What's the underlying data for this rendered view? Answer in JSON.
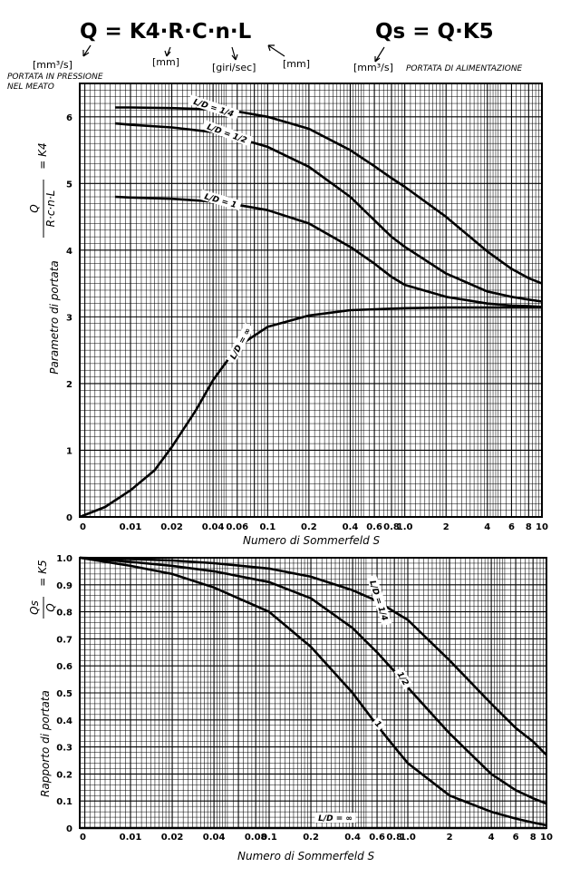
{
  "header": {
    "formula_q": "Q = K4·R·C·n·L",
    "formula_qs": "Qs = Q·K5",
    "unit_q": "[mm³/s]",
    "unit_r": "[mm]",
    "unit_n": "[giri/sec]",
    "unit_l": "[mm]",
    "unit_qs": "[mm³/s]",
    "note_q_line1": "PORTATA IN PRESSIONE",
    "note_q_line2": "NEL MEATO",
    "note_qs": "PORTATA DI ALIMENTAZIONE"
  },
  "chart_data": [
    {
      "type": "line",
      "xscale": "log-with-zero",
      "xlim": [
        0,
        10
      ],
      "ylim": [
        0,
        6.5
      ],
      "x_ticks": [
        "0",
        "0.01",
        "0.02",
        "0.04",
        "0.06",
        "0.1",
        "0.2",
        "0.4",
        "0.6",
        "0.8",
        "1.0",
        "2",
        "4",
        "6",
        "8",
        "10"
      ],
      "y_ticks": [
        "0",
        "1",
        "2",
        "3",
        "4",
        "5",
        "6"
      ],
      "xlabel": "Numero di Sommerfeld  S",
      "ylabel": "Parametro di portata",
      "ylabel_fraction_num": "Q",
      "ylabel_fraction_den": "R·c·n·L",
      "ylabel_fraction_rhs": "= K4",
      "grid": true,
      "series": [
        {
          "name": "L/D = 1/4",
          "points": [
            [
              0.007,
              6.14
            ],
            [
              0.01,
              6.14
            ],
            [
              0.02,
              6.13
            ],
            [
              0.04,
              6.11
            ],
            [
              0.06,
              6.08
            ],
            [
              0.1,
              6.0
            ],
            [
              0.2,
              5.82
            ],
            [
              0.4,
              5.5
            ],
            [
              0.6,
              5.26
            ],
            [
              0.8,
              5.08
            ],
            [
              1.0,
              4.95
            ],
            [
              2,
              4.5
            ],
            [
              4,
              3.98
            ],
            [
              6,
              3.72
            ],
            [
              8,
              3.58
            ],
            [
              10,
              3.5
            ]
          ]
        },
        {
          "name": "L/D = 1/2",
          "points": [
            [
              0.007,
              5.9
            ],
            [
              0.01,
              5.88
            ],
            [
              0.02,
              5.84
            ],
            [
              0.04,
              5.77
            ],
            [
              0.06,
              5.68
            ],
            [
              0.1,
              5.55
            ],
            [
              0.2,
              5.25
            ],
            [
              0.4,
              4.8
            ],
            [
              0.6,
              4.45
            ],
            [
              0.8,
              4.2
            ],
            [
              1.0,
              4.05
            ],
            [
              2,
              3.65
            ],
            [
              4,
              3.38
            ],
            [
              6,
              3.3
            ],
            [
              8,
              3.26
            ],
            [
              10,
              3.23
            ]
          ]
        },
        {
          "name": "L/D = 1",
          "points": [
            [
              0.007,
              4.8
            ],
            [
              0.01,
              4.79
            ],
            [
              0.02,
              4.77
            ],
            [
              0.04,
              4.73
            ],
            [
              0.06,
              4.68
            ],
            [
              0.1,
              4.6
            ],
            [
              0.2,
              4.4
            ],
            [
              0.4,
              4.05
            ],
            [
              0.6,
              3.8
            ],
            [
              0.8,
              3.6
            ],
            [
              1.0,
              3.48
            ],
            [
              2,
              3.3
            ],
            [
              4,
              3.2
            ],
            [
              6,
              3.17
            ],
            [
              8,
              3.16
            ],
            [
              10,
              3.15
            ]
          ]
        },
        {
          "name": "L/D = ∞",
          "points": [
            [
              0,
              0.0
            ],
            [
              0.005,
              0.15
            ],
            [
              0.01,
              0.4
            ],
            [
              0.015,
              0.7
            ],
            [
              0.02,
              1.05
            ],
            [
              0.03,
              1.6
            ],
            [
              0.04,
              2.05
            ],
            [
              0.06,
              2.55
            ],
            [
              0.1,
              2.85
            ],
            [
              0.2,
              3.02
            ],
            [
              0.4,
              3.1
            ],
            [
              1.0,
              3.13
            ],
            [
              2,
              3.14
            ],
            [
              4,
              3.14
            ],
            [
              10,
              3.14
            ]
          ]
        }
      ]
    },
    {
      "type": "line",
      "xscale": "log-with-zero",
      "xlim": [
        0,
        10
      ],
      "ylim": [
        0,
        1.0
      ],
      "x_ticks": [
        "0",
        "0.01",
        "0.02",
        "0.04",
        "0.08",
        "0.1",
        "0.2",
        "0.4",
        "0.6",
        "0.8",
        "1.0",
        "2",
        "4",
        "6",
        "8",
        "10"
      ],
      "y_ticks": [
        "0",
        "0.1",
        "0.2",
        "0.3",
        "0.4",
        "0.5",
        "0.6",
        "0.7",
        "0.8",
        "0.9",
        "1.0"
      ],
      "xlabel": "Numero di Sommerfeld  S",
      "ylabel": "Rapporto di portata",
      "ylabel_fraction_num": "Qs",
      "ylabel_fraction_den": "Q",
      "ylabel_fraction_rhs": "= K5",
      "grid": true,
      "series": [
        {
          "name": "L/D = 1/4",
          "points": [
            [
              0,
              1.0
            ],
            [
              0.01,
              0.995
            ],
            [
              0.02,
              0.99
            ],
            [
              0.04,
              0.98
            ],
            [
              0.1,
              0.96
            ],
            [
              0.2,
              0.93
            ],
            [
              0.4,
              0.88
            ],
            [
              0.6,
              0.84
            ],
            [
              0.8,
              0.8
            ],
            [
              1.0,
              0.77
            ],
            [
              2,
              0.62
            ],
            [
              4,
              0.46
            ],
            [
              6,
              0.37
            ],
            [
              8,
              0.32
            ],
            [
              10,
              0.27
            ]
          ]
        },
        {
          "name": "1/2",
          "points": [
            [
              0,
              1.0
            ],
            [
              0.01,
              0.985
            ],
            [
              0.02,
              0.97
            ],
            [
              0.04,
              0.95
            ],
            [
              0.1,
              0.91
            ],
            [
              0.2,
              0.85
            ],
            [
              0.4,
              0.74
            ],
            [
              0.6,
              0.65
            ],
            [
              0.8,
              0.58
            ],
            [
              1.0,
              0.52
            ],
            [
              2,
              0.35
            ],
            [
              4,
              0.2
            ],
            [
              6,
              0.14
            ],
            [
              8,
              0.11
            ],
            [
              10,
              0.09
            ]
          ]
        },
        {
          "name": "1",
          "points": [
            [
              0,
              1.0
            ],
            [
              0.01,
              0.97
            ],
            [
              0.02,
              0.94
            ],
            [
              0.04,
              0.89
            ],
            [
              0.1,
              0.8
            ],
            [
              0.2,
              0.67
            ],
            [
              0.4,
              0.5
            ],
            [
              0.6,
              0.38
            ],
            [
              0.8,
              0.3
            ],
            [
              1.0,
              0.24
            ],
            [
              2,
              0.12
            ],
            [
              4,
              0.06
            ],
            [
              6,
              0.035
            ],
            [
              8,
              0.02
            ],
            [
              10,
              0.01
            ]
          ]
        },
        {
          "name": "L/D = ∞",
          "points": [
            [
              0,
              0.0
            ],
            [
              10,
              0.0
            ]
          ]
        }
      ]
    }
  ]
}
